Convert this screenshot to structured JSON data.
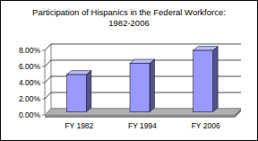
{
  "chart_data": {
    "type": "bar",
    "title": "Participation of Hispanics in the Federal Workforce: 1982-2006",
    "categories": [
      "FY 1982",
      "FY 1994",
      "FY 2006"
    ],
    "values": [
      4.6,
      6.0,
      7.6
    ],
    "color": "#9999ff",
    "ylim": [
      0,
      8
    ],
    "yticks": [
      {
        "value": 0,
        "label": "0.00%"
      },
      {
        "value": 2,
        "label": "2.00%"
      },
      {
        "value": 4,
        "label": "4.00%"
      },
      {
        "value": 6,
        "label": "6.00%"
      },
      {
        "value": 8,
        "label": "8.00%"
      }
    ],
    "grid": true
  }
}
